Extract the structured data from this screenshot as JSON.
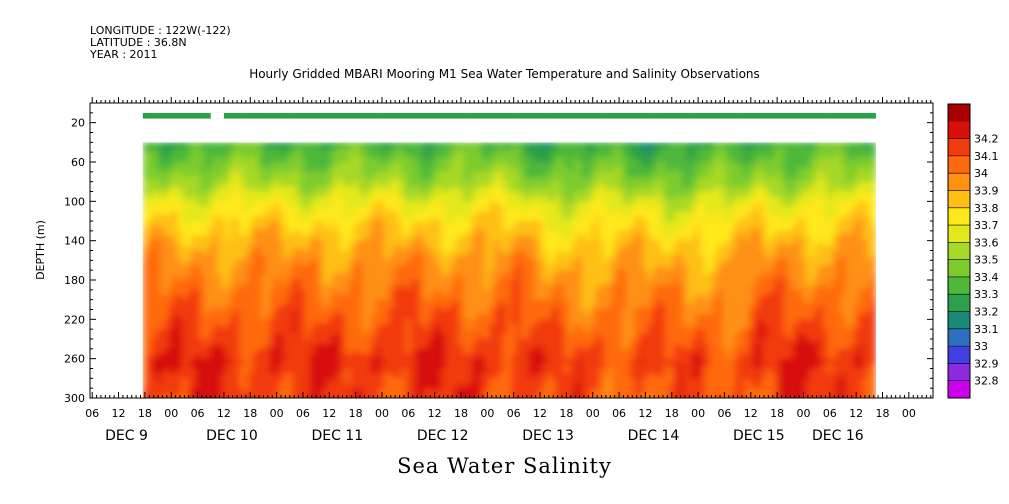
{
  "header": {
    "longitude": "LONGITUDE : 122W(-122)",
    "latitude": "LATITUDE : 36.8N",
    "year": "YEAR : 2011"
  },
  "chart_data": {
    "type": "heatmap",
    "title": "Hourly Gridded MBARI Mooring M1 Sea Water Temperature and Salinity Observations",
    "bottom_title": "Sea Water Salinity",
    "ylabel": "DEPTH (m)",
    "ylim": [
      300,
      0
    ],
    "y_axis_top": 0,
    "y_ticks": [
      20,
      60,
      100,
      140,
      180,
      220,
      260,
      300
    ],
    "x_hour_ticks": [
      "06",
      "12",
      "18",
      "00",
      "06",
      "12",
      "18",
      "00",
      "06",
      "12",
      "18",
      "00",
      "06",
      "12",
      "18",
      "00",
      "06",
      "12",
      "18",
      "00",
      "06",
      "12",
      "18",
      "00",
      "06",
      "12",
      "18",
      "00",
      "06",
      "12",
      "18",
      "00"
    ],
    "x_day_labels": [
      "DEC  9",
      "DEC 10",
      "DEC 11",
      "DEC 12",
      "DEC 13",
      "DEC 14",
      "DEC 15",
      "DEC 16"
    ],
    "x_hours_start": "DEC 9 06:00",
    "data_start_hour": 12,
    "data_end_hour": 178,
    "gap_hours": [
      [
        27,
        30
      ]
    ],
    "top_band_depth": [
      10,
      16
    ],
    "missing_depth": [
      16,
      40
    ],
    "colorbar": {
      "levels": [
        32.8,
        32.9,
        33,
        33.1,
        33.2,
        33.3,
        33.4,
        33.5,
        33.6,
        33.7,
        33.8,
        33.9,
        34,
        34.1,
        34.2
      ],
      "colors": [
        "#cc00ee",
        "#8a2be2",
        "#4040e0",
        "#2f6fc0",
        "#1a8a78",
        "#2ca04a",
        "#4db83a",
        "#7ccc2f",
        "#a8d828",
        "#e3e81e",
        "#ffe81a",
        "#ffc015",
        "#ff9012",
        "#ff6a10",
        "#f23a0c",
        "#d8100a",
        "#a80000"
      ]
    },
    "salinity_profile": {
      "depth": [
        40,
        60,
        80,
        100,
        120,
        140,
        160,
        180,
        200,
        220,
        240,
        260,
        280,
        300
      ],
      "salinity": [
        33.35,
        33.45,
        33.55,
        33.7,
        33.8,
        33.88,
        33.95,
        34.0,
        34.05,
        34.1,
        34.14,
        34.2,
        34.16,
        34.15
      ]
    }
  }
}
